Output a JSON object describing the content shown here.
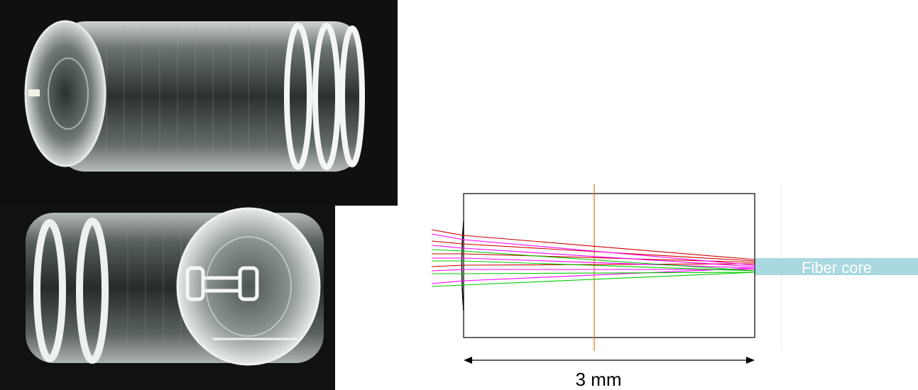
{
  "diagram": {
    "fiber_label": "Fiber core",
    "dimension_label": "3 mm"
  },
  "colors": {
    "fiber": "#a9d8e0",
    "stop_line": "#e87722",
    "ray_red": "#cc0000",
    "ray_magenta": "#ff00ff",
    "ray_green": "#00cc00"
  },
  "icons": [
    "lens-photo-top",
    "lens-photo-bottom",
    "double-arrow-icon"
  ]
}
